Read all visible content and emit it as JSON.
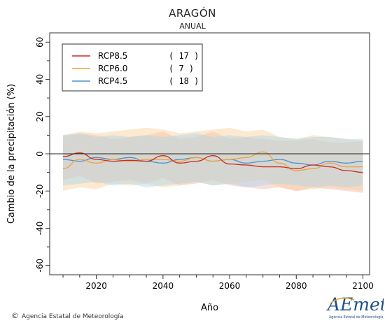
{
  "header": {
    "title": "ARAGÓN",
    "subtitle": "ANUAL"
  },
  "footer": {
    "credit": "Agencia Estatal de Meteorología",
    "logo_text": "AEmet",
    "logo_sub": "Agencia Estatal de Meteorología"
  },
  "chart_data": {
    "type": "line",
    "title": "ARAGÓN",
    "subtitle": "ANUAL",
    "xlabel": "Año",
    "ylabel": "Cambio de la precipitación (%)",
    "xlim": [
      2006,
      2102
    ],
    "ylim": [
      -65,
      65
    ],
    "x_ticks": [
      2020,
      2040,
      2060,
      2080,
      2100
    ],
    "y_ticks": [
      -60,
      -40,
      -20,
      0,
      20,
      40,
      60
    ],
    "reference_line": 0,
    "legend_position": "top-left",
    "x": [
      2010,
      2015,
      2020,
      2025,
      2030,
      2035,
      2040,
      2045,
      2050,
      2055,
      2060,
      2065,
      2070,
      2075,
      2080,
      2085,
      2090,
      2095,
      2100
    ],
    "series": [
      {
        "name": "RCP8.5",
        "count": "( 17 )",
        "color": "#cc2a1e",
        "band_color": "#f4b6ae",
        "values": [
          -1.5,
          0.5,
          -3,
          -4,
          -3.5,
          -4,
          -1,
          -5,
          -4,
          -1,
          -5.5,
          -6,
          -7,
          -7,
          -8,
          -6,
          -7,
          -9,
          -10
        ],
        "upper": [
          9,
          11,
          10,
          8,
          9,
          10,
          12,
          8,
          9,
          12,
          8,
          9,
          8,
          7,
          7,
          8,
          6,
          6,
          7
        ],
        "lower": [
          -14,
          -12,
          -16,
          -15,
          -14,
          -16,
          -13,
          -17,
          -16,
          -14,
          -17,
          -18,
          -19,
          -18,
          -20,
          -18,
          -19,
          -20,
          -21
        ]
      },
      {
        "name": "RCP6.0",
        "count": "(   7 )",
        "color": "#f0a040",
        "band_color": "#f8cf96",
        "values": [
          -8,
          -3,
          -5,
          -3,
          -4,
          -3,
          -3,
          -4,
          -2,
          -4,
          -3,
          -2,
          1,
          -5,
          -9,
          -8,
          -5,
          -7,
          -7
        ],
        "upper": [
          10,
          12,
          11,
          12,
          13,
          14,
          13,
          11,
          12,
          13,
          14,
          12,
          13,
          9,
          8,
          10,
          9,
          8,
          7
        ],
        "lower": [
          -20,
          -18,
          -19,
          -16,
          -17,
          -16,
          -18,
          -17,
          -15,
          -17,
          -16,
          -15,
          -14,
          -18,
          -20,
          -19,
          -18,
          -19,
          -20
        ]
      },
      {
        "name": "RCP4.5",
        "count": "( 18 )",
        "color": "#4a90d0",
        "band_color": "#a9d4ea",
        "values": [
          -3,
          -4,
          -2,
          -3,
          -2,
          -4,
          -5,
          -3,
          -2,
          -4,
          -3,
          -5,
          -4,
          -3,
          -5,
          -6,
          -4,
          -5,
          -4
        ],
        "upper": [
          10,
          11,
          9,
          10,
          9,
          10,
          9,
          10,
          11,
          9,
          10,
          9,
          10,
          9,
          8,
          9,
          9,
          8,
          8
        ],
        "lower": [
          -17,
          -16,
          -15,
          -17,
          -16,
          -18,
          -17,
          -16,
          -15,
          -17,
          -16,
          -18,
          -17,
          -16,
          -17,
          -18,
          -17,
          -18,
          -17
        ]
      }
    ]
  }
}
